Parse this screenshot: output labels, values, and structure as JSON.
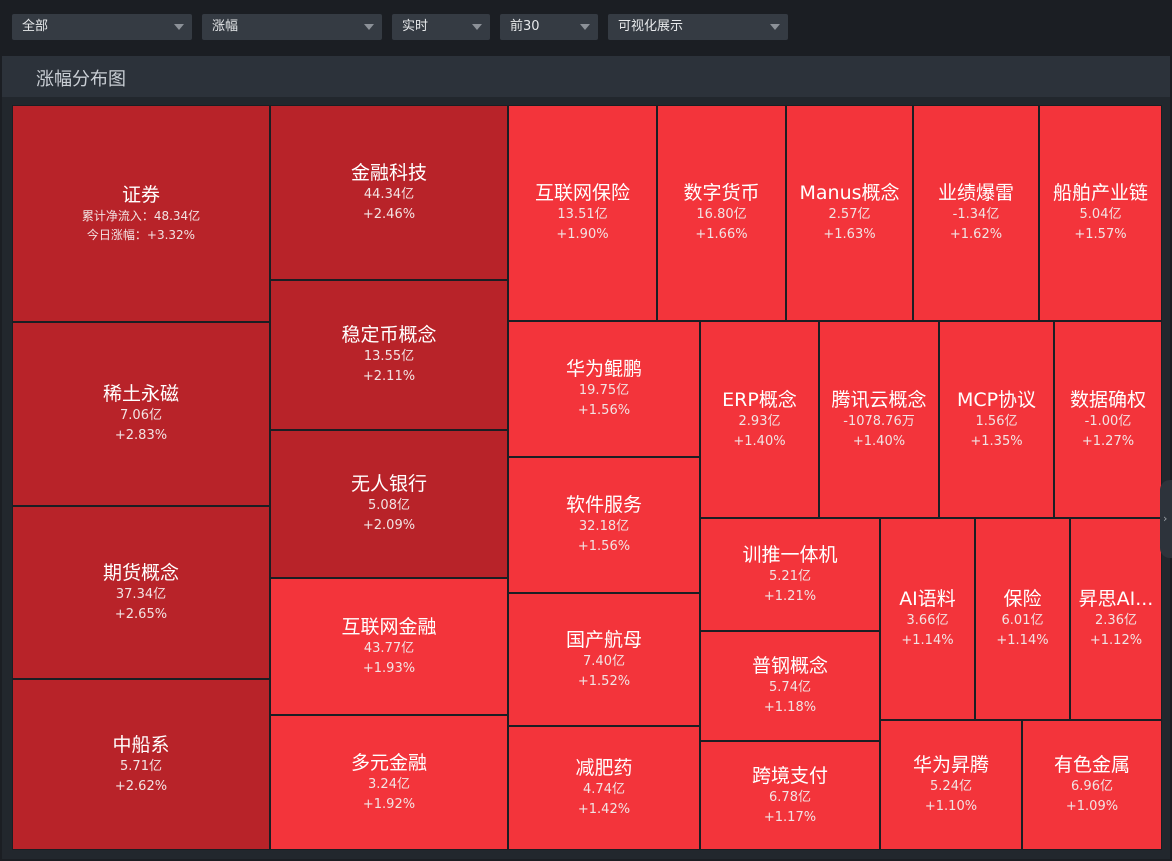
{
  "filters": [
    {
      "label": "全部"
    },
    {
      "label": "涨幅"
    },
    {
      "label": "实时"
    },
    {
      "label": "前30"
    },
    {
      "label": "可视化展示"
    }
  ],
  "panel": {
    "title": "涨幅分布图"
  },
  "tiles": [
    {
      "name": "证券",
      "net_flow_label": "累计净流入：",
      "net_flow": "48.34亿",
      "change_label": "今日涨幅：",
      "change": "+3.32%"
    },
    {
      "name": "稀土永磁",
      "value": "7.06亿",
      "change": "+2.83%"
    },
    {
      "name": "期货概念",
      "value": "37.34亿",
      "change": "+2.65%"
    },
    {
      "name": "中船系",
      "value": "5.71亿",
      "change": "+2.62%"
    },
    {
      "name": "金融科技",
      "value": "44.34亿",
      "change": "+2.46%"
    },
    {
      "name": "稳定币概念",
      "value": "13.55亿",
      "change": "+2.11%"
    },
    {
      "name": "无人银行",
      "value": "5.08亿",
      "change": "+2.09%"
    },
    {
      "name": "互联网金融",
      "value": "43.77亿",
      "change": "+1.93%"
    },
    {
      "name": "多元金融",
      "value": "3.24亿",
      "change": "+1.92%"
    },
    {
      "name": "互联网保险",
      "value": "13.51亿",
      "change": "+1.90%"
    },
    {
      "name": "数字货币",
      "value": "16.80亿",
      "change": "+1.66%"
    },
    {
      "name": "Manus概念",
      "value": "2.57亿",
      "change": "+1.63%"
    },
    {
      "name": "业绩爆雷",
      "value": "-1.34亿",
      "change": "+1.62%"
    },
    {
      "name": "船舶产业链",
      "value": "5.04亿",
      "change": "+1.57%"
    },
    {
      "name": "华为鲲鹏",
      "value": "19.75亿",
      "change": "+1.56%"
    },
    {
      "name": "软件服务",
      "value": "32.18亿",
      "change": "+1.56%"
    },
    {
      "name": "国产航母",
      "value": "7.40亿",
      "change": "+1.52%"
    },
    {
      "name": "减肥药",
      "value": "4.74亿",
      "change": "+1.42%"
    },
    {
      "name": "ERP概念",
      "value": "2.93亿",
      "change": "+1.40%"
    },
    {
      "name": "腾讯云概念",
      "value": "-1078.76万",
      "change": "+1.40%"
    },
    {
      "name": "MCP协议",
      "value": "1.56亿",
      "change": "+1.35%"
    },
    {
      "name": "数据确权",
      "value": "-1.00亿",
      "change": "+1.27%"
    },
    {
      "name": "训推一体机",
      "value": "5.21亿",
      "change": "+1.21%"
    },
    {
      "name": "普钢概念",
      "value": "5.74亿",
      "change": "+1.18%"
    },
    {
      "name": "跨境支付",
      "value": "6.78亿",
      "change": "+1.17%"
    },
    {
      "name": "AI语料",
      "value": "3.66亿",
      "change": "+1.14%"
    },
    {
      "name": "保险",
      "value": "6.01亿",
      "change": "+1.14%"
    },
    {
      "name": "昇思AI...",
      "value": "2.36亿",
      "change": "+1.12%"
    },
    {
      "name": "华为昇腾",
      "value": "5.24亿",
      "change": "+1.10%"
    },
    {
      "name": "有色金属",
      "value": "6.96亿",
      "change": "+1.09%"
    }
  ],
  "colors": {
    "strong": "#b82329",
    "normal": "#f3343b",
    "background": "#1b1e23",
    "panel_header": "#2c323a"
  },
  "icons": {
    "dropdown": "chevron-down-icon",
    "side_panel": "chevron-right-icon"
  }
}
